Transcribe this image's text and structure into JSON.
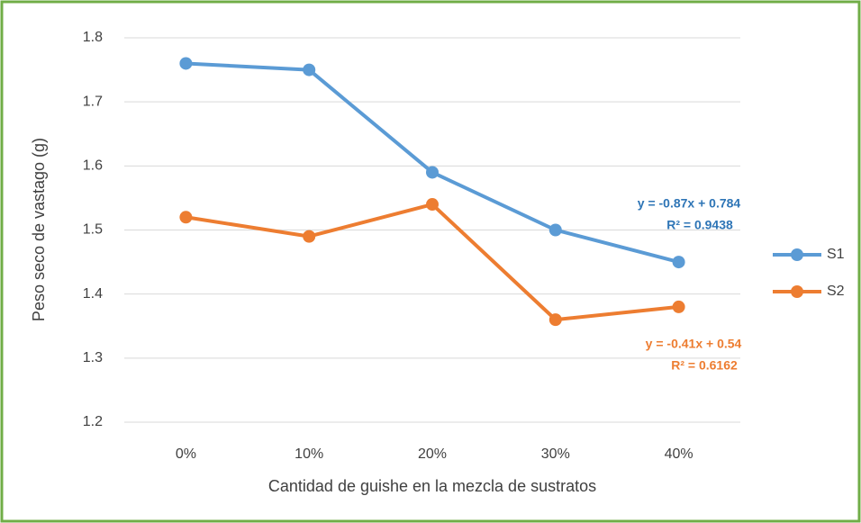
{
  "chart_data": {
    "type": "line",
    "x_label": "Cantidad de guishe en la mezcla de sustratos",
    "y_label": "Peso seco de vastago (g)",
    "categories": [
      "0%",
      "10%",
      "20%",
      "30%",
      "40%"
    ],
    "series": [
      {
        "name": "S1",
        "color": "#5b9bd5",
        "values": [
          1.76,
          1.75,
          1.59,
          1.5,
          1.45
        ]
      },
      {
        "name": "S2",
        "color": "#ed7d31",
        "values": [
          1.52,
          1.49,
          1.54,
          1.36,
          1.38
        ]
      }
    ],
    "annotations": [
      {
        "equation": "y = -0.87x + 0.784",
        "r2": "R² = 0.9438",
        "color": "#2e75b6"
      },
      {
        "equation": "y = -0.41x + 0.54",
        "r2": "R² = 0.6162",
        "color": "#ed7d31"
      }
    ],
    "ylim": [
      1.2,
      1.8
    ],
    "yticks": [
      1.2,
      1.3,
      1.4,
      1.5,
      1.6,
      1.7,
      1.8
    ],
    "grid": true,
    "legend": "right"
  }
}
